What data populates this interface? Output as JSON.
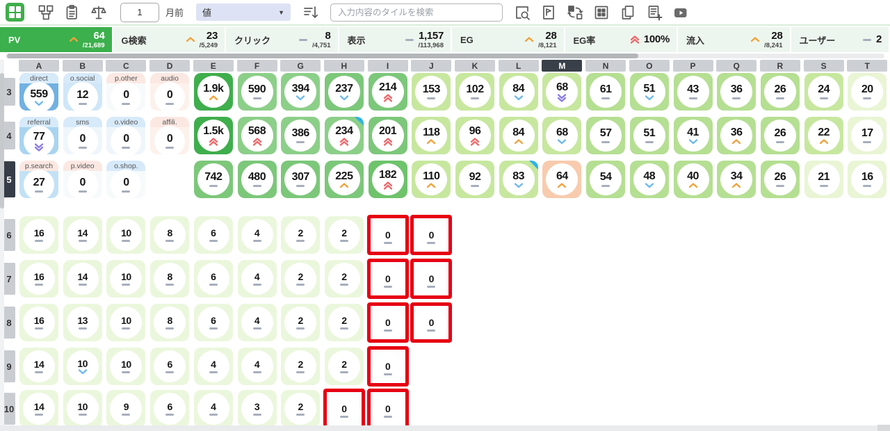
{
  "toolbar": {
    "period_value": "1",
    "period_label": "月前",
    "mode_select_value": "値",
    "search_placeholder": "入力内容のタイルを検索",
    "left_icons": [
      "apps-grid-icon",
      "flow-icon",
      "paste-icon",
      "scale-icon",
      "sort-desc-icon"
    ],
    "right_icons": [
      "zoom-search-icon",
      "file-flag-icon",
      "sync-icon",
      "grid-icon",
      "copy-icon",
      "note-add-icon",
      "video-icon"
    ]
  },
  "kpis": [
    {
      "name": "PV",
      "ind": "up",
      "value": "64",
      "denom": "/21,689",
      "active": true
    },
    {
      "name": "G検索",
      "ind": "up",
      "value": "23",
      "denom": "/5,249",
      "active": false
    },
    {
      "name": "クリック",
      "ind": "dash",
      "value": "8",
      "denom": "/4,751",
      "active": false
    },
    {
      "name": "表示",
      "ind": "dash",
      "value": "1,157",
      "denom": "/113,968",
      "active": false
    },
    {
      "name": "EG",
      "ind": "up",
      "value": "28",
      "denom": "/8,121",
      "active": false
    },
    {
      "name": "EG率",
      "ind": "up2",
      "value": "100%",
      "denom": "",
      "active": false
    },
    {
      "name": "流入",
      "ind": "up",
      "value": "28",
      "denom": "/8,241",
      "active": false
    },
    {
      "name": "ユーザー",
      "ind": "dash",
      "value": "2",
      "denom": "",
      "active": false
    }
  ],
  "columns": {
    "letters": [
      "A",
      "B",
      "C",
      "D",
      "E",
      "F",
      "G",
      "H",
      "I",
      "J",
      "K",
      "L",
      "M",
      "N",
      "O",
      "P",
      "Q",
      "R",
      "S",
      "T"
    ],
    "active": "M"
  },
  "active_row": "5",
  "palette": {
    "g1": "#3fae4c",
    "g2": "#8ccf89",
    "g3": "#7cc77a",
    "g4": "#6ec36b",
    "g5": "#c7e79f",
    "g6": "#b5df92",
    "g7": "#e9f5d4",
    "g8": "#ebf7dc",
    "blue1": "#72b1e1",
    "blue2": "#a9d4f0",
    "blue3": "#c3e1f5",
    "blueL": "#cfe7f8",
    "offWhite": "#f7fafb",
    "offWhiteB": "#eff6fb",
    "pinkLt": "#fdf1ec",
    "peach": "#f8cbae",
    "lblBlue": "#d7eafa",
    "lblPink": "#fce8e2"
  },
  "indicator_colors": {
    "up": "#f2a23b",
    "down": "#6cb9ef",
    "up2": "#ef686b",
    "down2": "#8b7ce8",
    "dash": "#a7aebc",
    "alert_border": "#e60012",
    "corner": "#2eb3ea"
  },
  "rows": [
    {
      "num": "3",
      "tiles": [
        {
          "col": "A",
          "label": "direct",
          "lb": "lblBlue",
          "v": "559",
          "ind": "down",
          "bg": "blue1"
        },
        {
          "col": "B",
          "label": "o.social",
          "lb": "lblBlue",
          "v": "12",
          "ind": "dash",
          "bg": "blueL"
        },
        {
          "col": "C",
          "label": "p.other",
          "lb": "lblPink",
          "v": "0",
          "ind": "dash",
          "bg": "offWhite"
        },
        {
          "col": "D",
          "label": "audio",
          "lb": "lblPink",
          "v": "0",
          "ind": "dash",
          "bg": "pinkLt"
        },
        {
          "col": "E",
          "v": "1.9k",
          "ind": "up",
          "bg": "g1"
        },
        {
          "col": "F",
          "v": "590",
          "ind": "dash",
          "bg": "g2"
        },
        {
          "col": "G",
          "v": "394",
          "ind": "down",
          "bg": "g2"
        },
        {
          "col": "H",
          "v": "237",
          "ind": "down",
          "bg": "g3"
        },
        {
          "col": "I",
          "v": "214",
          "ind": "up2",
          "bg": "g3"
        },
        {
          "col": "J",
          "v": "153",
          "ind": "dash",
          "bg": "g5"
        },
        {
          "col": "K",
          "v": "102",
          "ind": "dash",
          "bg": "g5"
        },
        {
          "col": "L",
          "v": "84",
          "ind": "down",
          "bg": "g5"
        },
        {
          "col": "M",
          "v": "68",
          "ind": "down2",
          "bg": "g5"
        },
        {
          "col": "N",
          "v": "61",
          "ind": "dash",
          "bg": "g6"
        },
        {
          "col": "O",
          "v": "51",
          "ind": "down",
          "bg": "g6"
        },
        {
          "col": "P",
          "v": "43",
          "ind": "dash",
          "bg": "g6"
        },
        {
          "col": "Q",
          "v": "36",
          "ind": "dash",
          "bg": "g6"
        },
        {
          "col": "R",
          "v": "26",
          "ind": "dash",
          "bg": "g6"
        },
        {
          "col": "S",
          "v": "24",
          "ind": "dash",
          "bg": "g5"
        },
        {
          "col": "T",
          "v": "20",
          "ind": "dash",
          "bg": "g7"
        }
      ]
    },
    {
      "num": "4",
      "tiles": [
        {
          "col": "A",
          "label": "referral",
          "lb": "lblBlue",
          "v": "77",
          "ind": "down2",
          "bg": "blue2"
        },
        {
          "col": "B",
          "label": "sms",
          "lb": "lblBlue",
          "v": "0",
          "ind": "dash",
          "bg": "offWhiteB"
        },
        {
          "col": "C",
          "label": "o.video",
          "lb": "lblBlue",
          "v": "0",
          "ind": "dash",
          "bg": "offWhiteB"
        },
        {
          "col": "D",
          "label": "affili.",
          "lb": "lblPink",
          "v": "0",
          "ind": "dash",
          "bg": "pinkLt"
        },
        {
          "col": "E",
          "v": "1.5k",
          "ind": "up2",
          "bg": "g1"
        },
        {
          "col": "F",
          "v": "568",
          "ind": "up2",
          "bg": "g2"
        },
        {
          "col": "G",
          "v": "386",
          "ind": "dash",
          "bg": "g2"
        },
        {
          "col": "H",
          "v": "234",
          "ind": "up2",
          "bg": "g2",
          "corner": true
        },
        {
          "col": "I",
          "v": "201",
          "ind": "up2",
          "bg": "g3"
        },
        {
          "col": "J",
          "v": "118",
          "ind": "up",
          "bg": "g5"
        },
        {
          "col": "K",
          "v": "96",
          "ind": "up2",
          "bg": "g5"
        },
        {
          "col": "L",
          "v": "84",
          "ind": "up",
          "bg": "g5"
        },
        {
          "col": "M",
          "v": "68",
          "ind": "down",
          "bg": "g5"
        },
        {
          "col": "N",
          "v": "57",
          "ind": "dash",
          "bg": "g6"
        },
        {
          "col": "O",
          "v": "51",
          "ind": "dash",
          "bg": "g6"
        },
        {
          "col": "P",
          "v": "41",
          "ind": "down",
          "bg": "g6"
        },
        {
          "col": "Q",
          "v": "36",
          "ind": "up",
          "bg": "g6"
        },
        {
          "col": "R",
          "v": "26",
          "ind": "dash",
          "bg": "g6"
        },
        {
          "col": "S",
          "v": "22",
          "ind": "up",
          "bg": "g5"
        },
        {
          "col": "T",
          "v": "17",
          "ind": "dash",
          "bg": "g7"
        }
      ]
    },
    {
      "num": "5",
      "tiles": [
        {
          "col": "A",
          "label": "p.search",
          "lb": "lblPink",
          "v": "27",
          "ind": "dash",
          "bg": "blue3"
        },
        {
          "col": "B",
          "label": "p.video",
          "lb": "lblPink",
          "v": "0",
          "ind": "dash",
          "bg": "offWhite"
        },
        {
          "col": "C",
          "label": "o.shop.",
          "lb": "lblBlue",
          "v": "0",
          "ind": "dash",
          "bg": "offWhite"
        },
        {
          "col": "E",
          "v": "742",
          "ind": "dash",
          "bg": "g3"
        },
        {
          "col": "F",
          "v": "480",
          "ind": "dash",
          "bg": "g3"
        },
        {
          "col": "G",
          "v": "307",
          "ind": "dash",
          "bg": "g3"
        },
        {
          "col": "H",
          "v": "225",
          "ind": "up",
          "bg": "g3"
        },
        {
          "col": "I",
          "v": "182",
          "ind": "up2",
          "bg": "g4"
        },
        {
          "col": "J",
          "v": "110",
          "ind": "up",
          "bg": "g5"
        },
        {
          "col": "K",
          "v": "92",
          "ind": "dash",
          "bg": "g5"
        },
        {
          "col": "L",
          "v": "83",
          "ind": "down",
          "bg": "g5",
          "corner": true
        },
        {
          "col": "M",
          "v": "64",
          "ind": "up",
          "bg": "peach"
        },
        {
          "col": "N",
          "v": "54",
          "ind": "dash",
          "bg": "g6"
        },
        {
          "col": "O",
          "v": "48",
          "ind": "down",
          "bg": "g6"
        },
        {
          "col": "P",
          "v": "40",
          "ind": "up",
          "bg": "g6"
        },
        {
          "col": "Q",
          "v": "34",
          "ind": "up",
          "bg": "g6"
        },
        {
          "col": "R",
          "v": "26",
          "ind": "dash",
          "bg": "g6"
        },
        {
          "col": "S",
          "v": "21",
          "ind": "dash",
          "bg": "g7"
        },
        {
          "col": "T",
          "v": "16",
          "ind": "dash",
          "bg": "g7"
        }
      ]
    },
    {
      "num": "6",
      "tiles": [
        {
          "col": "A",
          "v": "16",
          "ind": "dash",
          "bg": "g8"
        },
        {
          "col": "B",
          "v": "14",
          "ind": "dash",
          "bg": "g8"
        },
        {
          "col": "C",
          "v": "10",
          "ind": "dash",
          "bg": "g8"
        },
        {
          "col": "D",
          "v": "8",
          "ind": "dash",
          "bg": "g8"
        },
        {
          "col": "E",
          "v": "6",
          "ind": "dash",
          "bg": "g8"
        },
        {
          "col": "F",
          "v": "4",
          "ind": "dash",
          "bg": "g8"
        },
        {
          "col": "G",
          "v": "2",
          "ind": "dash",
          "bg": "g8"
        },
        {
          "col": "H",
          "v": "2",
          "ind": "dash",
          "bg": "g8"
        },
        {
          "col": "I",
          "v": "0",
          "ind": "dash",
          "alert": true
        },
        {
          "col": "J",
          "v": "0",
          "ind": "dash",
          "alert": true
        }
      ]
    },
    {
      "num": "7",
      "tiles": [
        {
          "col": "A",
          "v": "16",
          "ind": "dash",
          "bg": "g8"
        },
        {
          "col": "B",
          "v": "14",
          "ind": "dash",
          "bg": "g8"
        },
        {
          "col": "C",
          "v": "10",
          "ind": "dash",
          "bg": "g8"
        },
        {
          "col": "D",
          "v": "8",
          "ind": "dash",
          "bg": "g8"
        },
        {
          "col": "E",
          "v": "6",
          "ind": "dash",
          "bg": "g8"
        },
        {
          "col": "F",
          "v": "4",
          "ind": "dash",
          "bg": "g8"
        },
        {
          "col": "G",
          "v": "2",
          "ind": "dash",
          "bg": "g8"
        },
        {
          "col": "H",
          "v": "2",
          "ind": "dash",
          "bg": "g8"
        },
        {
          "col": "I",
          "v": "0",
          "ind": "dash",
          "alert": true
        },
        {
          "col": "J",
          "v": "0",
          "ind": "dash",
          "alert": true
        }
      ]
    },
    {
      "num": "8",
      "tiles": [
        {
          "col": "A",
          "v": "16",
          "ind": "dash",
          "bg": "g8"
        },
        {
          "col": "B",
          "v": "13",
          "ind": "dash",
          "bg": "g8"
        },
        {
          "col": "C",
          "v": "10",
          "ind": "dash",
          "bg": "g8"
        },
        {
          "col": "D",
          "v": "8",
          "ind": "dash",
          "bg": "g8"
        },
        {
          "col": "E",
          "v": "6",
          "ind": "dash",
          "bg": "g8"
        },
        {
          "col": "F",
          "v": "4",
          "ind": "dash",
          "bg": "g8"
        },
        {
          "col": "G",
          "v": "2",
          "ind": "dash",
          "bg": "g8"
        },
        {
          "col": "H",
          "v": "2",
          "ind": "dash",
          "bg": "g8"
        },
        {
          "col": "I",
          "v": "0",
          "ind": "dash",
          "alert": true
        },
        {
          "col": "J",
          "v": "0",
          "ind": "dash",
          "alert": true
        }
      ]
    },
    {
      "num": "9",
      "tiles": [
        {
          "col": "A",
          "v": "14",
          "ind": "dash",
          "bg": "g8"
        },
        {
          "col": "B",
          "v": "10",
          "ind": "down",
          "bg": "g8"
        },
        {
          "col": "C",
          "v": "10",
          "ind": "dash",
          "bg": "g8"
        },
        {
          "col": "D",
          "v": "6",
          "ind": "dash",
          "bg": "g8"
        },
        {
          "col": "E",
          "v": "4",
          "ind": "dash",
          "bg": "g8"
        },
        {
          "col": "F",
          "v": "4",
          "ind": "dash",
          "bg": "g8"
        },
        {
          "col": "G",
          "v": "2",
          "ind": "dash",
          "bg": "g8"
        },
        {
          "col": "H",
          "v": "2",
          "ind": "dash",
          "bg": "g8"
        },
        {
          "col": "I",
          "v": "0",
          "ind": "dash",
          "alert": true
        }
      ]
    },
    {
      "num": "10",
      "tiles": [
        {
          "col": "A",
          "v": "14",
          "ind": "dash",
          "bg": "g8"
        },
        {
          "col": "B",
          "v": "10",
          "ind": "dash",
          "bg": "g8"
        },
        {
          "col": "C",
          "v": "9",
          "ind": "dash",
          "bg": "g8"
        },
        {
          "col": "D",
          "v": "6",
          "ind": "dash",
          "bg": "g8"
        },
        {
          "col": "E",
          "v": "4",
          "ind": "dash",
          "bg": "g8"
        },
        {
          "col": "F",
          "v": "3",
          "ind": "dash",
          "bg": "g8"
        },
        {
          "col": "G",
          "v": "2",
          "ind": "dash",
          "bg": "g8"
        },
        {
          "col": "H",
          "v": "0",
          "ind": "dash",
          "alert": true
        },
        {
          "col": "I",
          "v": "0",
          "ind": "dash",
          "alert": true
        }
      ]
    }
  ]
}
